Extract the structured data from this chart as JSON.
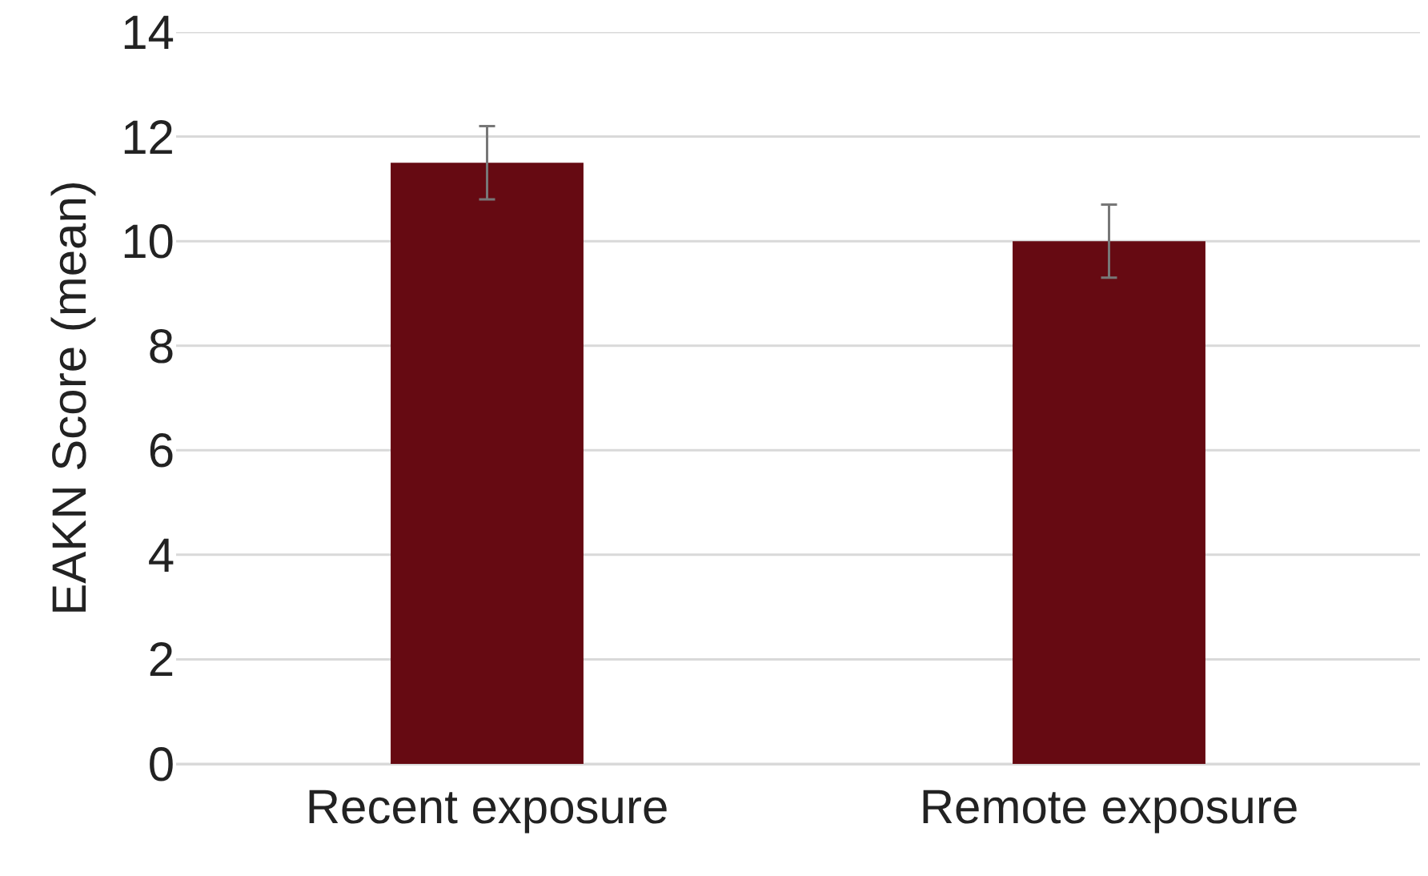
{
  "chart_data": {
    "type": "bar",
    "ylabel": "EAKN Score (mean)",
    "categories": [
      "Recent exposure",
      "Remote exposure"
    ],
    "values": [
      11.5,
      10.0
    ],
    "errors": [
      0.7,
      0.7
    ],
    "color": "#660a12",
    "ylim": [
      0,
      14
    ],
    "yticks": [
      0,
      2,
      4,
      6,
      8,
      10,
      12,
      14
    ],
    "grid": "y"
  }
}
